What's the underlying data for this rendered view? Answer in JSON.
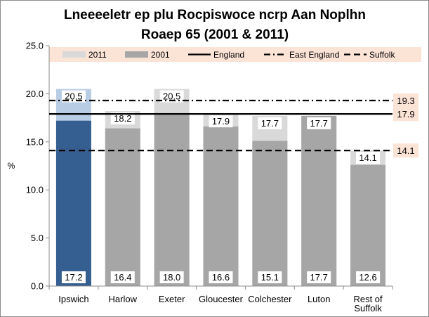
{
  "chart_data": {
    "type": "bar",
    "title_lines": [
      "Lneeeeletr ep plu Rocpiswoce ncrp Aan Noplhn",
      "Roaep 65 (2001 & 2011)"
    ],
    "ylabel": "%",
    "ylim": [
      0,
      25
    ],
    "yticks": [
      "0.0",
      "5.0",
      "10.0",
      "15.0",
      "20.0",
      "25.0"
    ],
    "ytick_values": [
      0,
      5,
      10,
      15,
      20,
      25
    ],
    "grid": false,
    "legend_position": "top",
    "categories": [
      {
        "name": "Ipswich",
        "lines": [
          "Ipswich"
        ]
      },
      {
        "name": "Harlow",
        "lines": [
          "Harlow"
        ]
      },
      {
        "name": "Exeter",
        "lines": [
          "Exeter"
        ]
      },
      {
        "name": "Gloucester",
        "lines": [
          "Gloucester"
        ]
      },
      {
        "name": "Colchester",
        "lines": [
          "Colchester"
        ]
      },
      {
        "name": "Luton",
        "lines": [
          "Luton"
        ]
      },
      {
        "name": "Rest of Suffolk",
        "lines": [
          "Rest of",
          "Suffolk"
        ]
      }
    ],
    "series": [
      {
        "name": "2011",
        "values": [
          20.5,
          18.2,
          20.5,
          17.9,
          17.7,
          17.7,
          14.1
        ],
        "value_labels": [
          "20.5",
          "18.2",
          "20.5",
          "17.9",
          "17.7",
          "17.7",
          "14.1"
        ]
      },
      {
        "name": "2001",
        "values": [
          17.2,
          16.4,
          18.0,
          16.6,
          15.1,
          17.7,
          12.6
        ],
        "value_labels": [
          "17.2",
          "16.4",
          "18.0",
          "16.6",
          "15.1",
          "17.7",
          "12.6"
        ]
      }
    ],
    "reference_lines": [
      {
        "name": "England",
        "value": 17.9,
        "label": "17.9",
        "style": "solid"
      },
      {
        "name": "East England",
        "value": 19.3,
        "label": "19.3",
        "style": "dash-dot"
      },
      {
        "name": "Suffolk",
        "value": 14.1,
        "label": "14.1",
        "style": "dashed"
      }
    ],
    "colors": {
      "bar_2011": "#d9d9d9",
      "bar_2001": "#a6a6a6",
      "highlight_2011": "#b8cce4",
      "highlight_2001": "#355e91",
      "legend_bg": "#fbe3d6",
      "label_bg": "#ffffff",
      "ref_label_bg": "#fbe3d6",
      "line": "#000000"
    },
    "highlight_category": "Ipswich"
  }
}
